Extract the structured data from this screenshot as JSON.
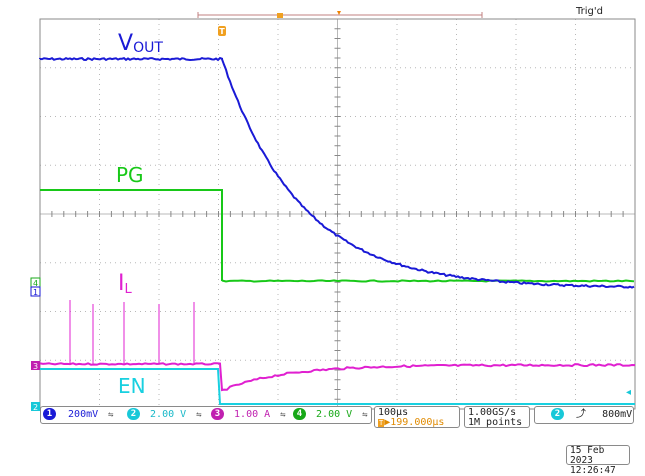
{
  "status": {
    "trigger_state": "Trig'd"
  },
  "trace_labels": {
    "vout": {
      "main": "V",
      "sub": "OUT",
      "color": "#1a1ad6"
    },
    "pg": {
      "main": "PG",
      "color": "#18c818"
    },
    "il": {
      "main": "I",
      "sub": "L",
      "color": "#e020d0"
    },
    "en": {
      "main": "EN",
      "color": "#18d0e0"
    }
  },
  "channels": [
    {
      "num": "1",
      "scale": "200mV",
      "color": "#1a1ad6",
      "text_color": "#1a1ad6"
    },
    {
      "num": "2",
      "scale": "2.00 V",
      "color": "#18c8d8",
      "text_color": "#18b8c8"
    },
    {
      "num": "3",
      "scale": "1.00 A",
      "color": "#c020b0",
      "text_color": "#c020b0"
    },
    {
      "num": "4",
      "scale": "2.00 V",
      "color": "#18a818",
      "text_color": "#18a818"
    }
  ],
  "bw_symbol": "⇋",
  "horizontal": {
    "timebase": "100µs",
    "position": "▶199.000µs",
    "position_marker": "T"
  },
  "acquisition": {
    "sample_rate": "1.00GS/s",
    "record_length": "1M points"
  },
  "trigger": {
    "source": "2",
    "slope": "⤴",
    "level": "800mV"
  },
  "timestamp": {
    "date": "15 Feb 2023",
    "time": "12:26:47"
  },
  "markers": {
    "trigger": "T",
    "ch1": "1",
    "ch2": "2",
    "ch3": "3",
    "ch4": "4"
  },
  "colors": {
    "grid": "#b8b8b8",
    "axis": "#888888",
    "background": "#ffffff"
  }
}
